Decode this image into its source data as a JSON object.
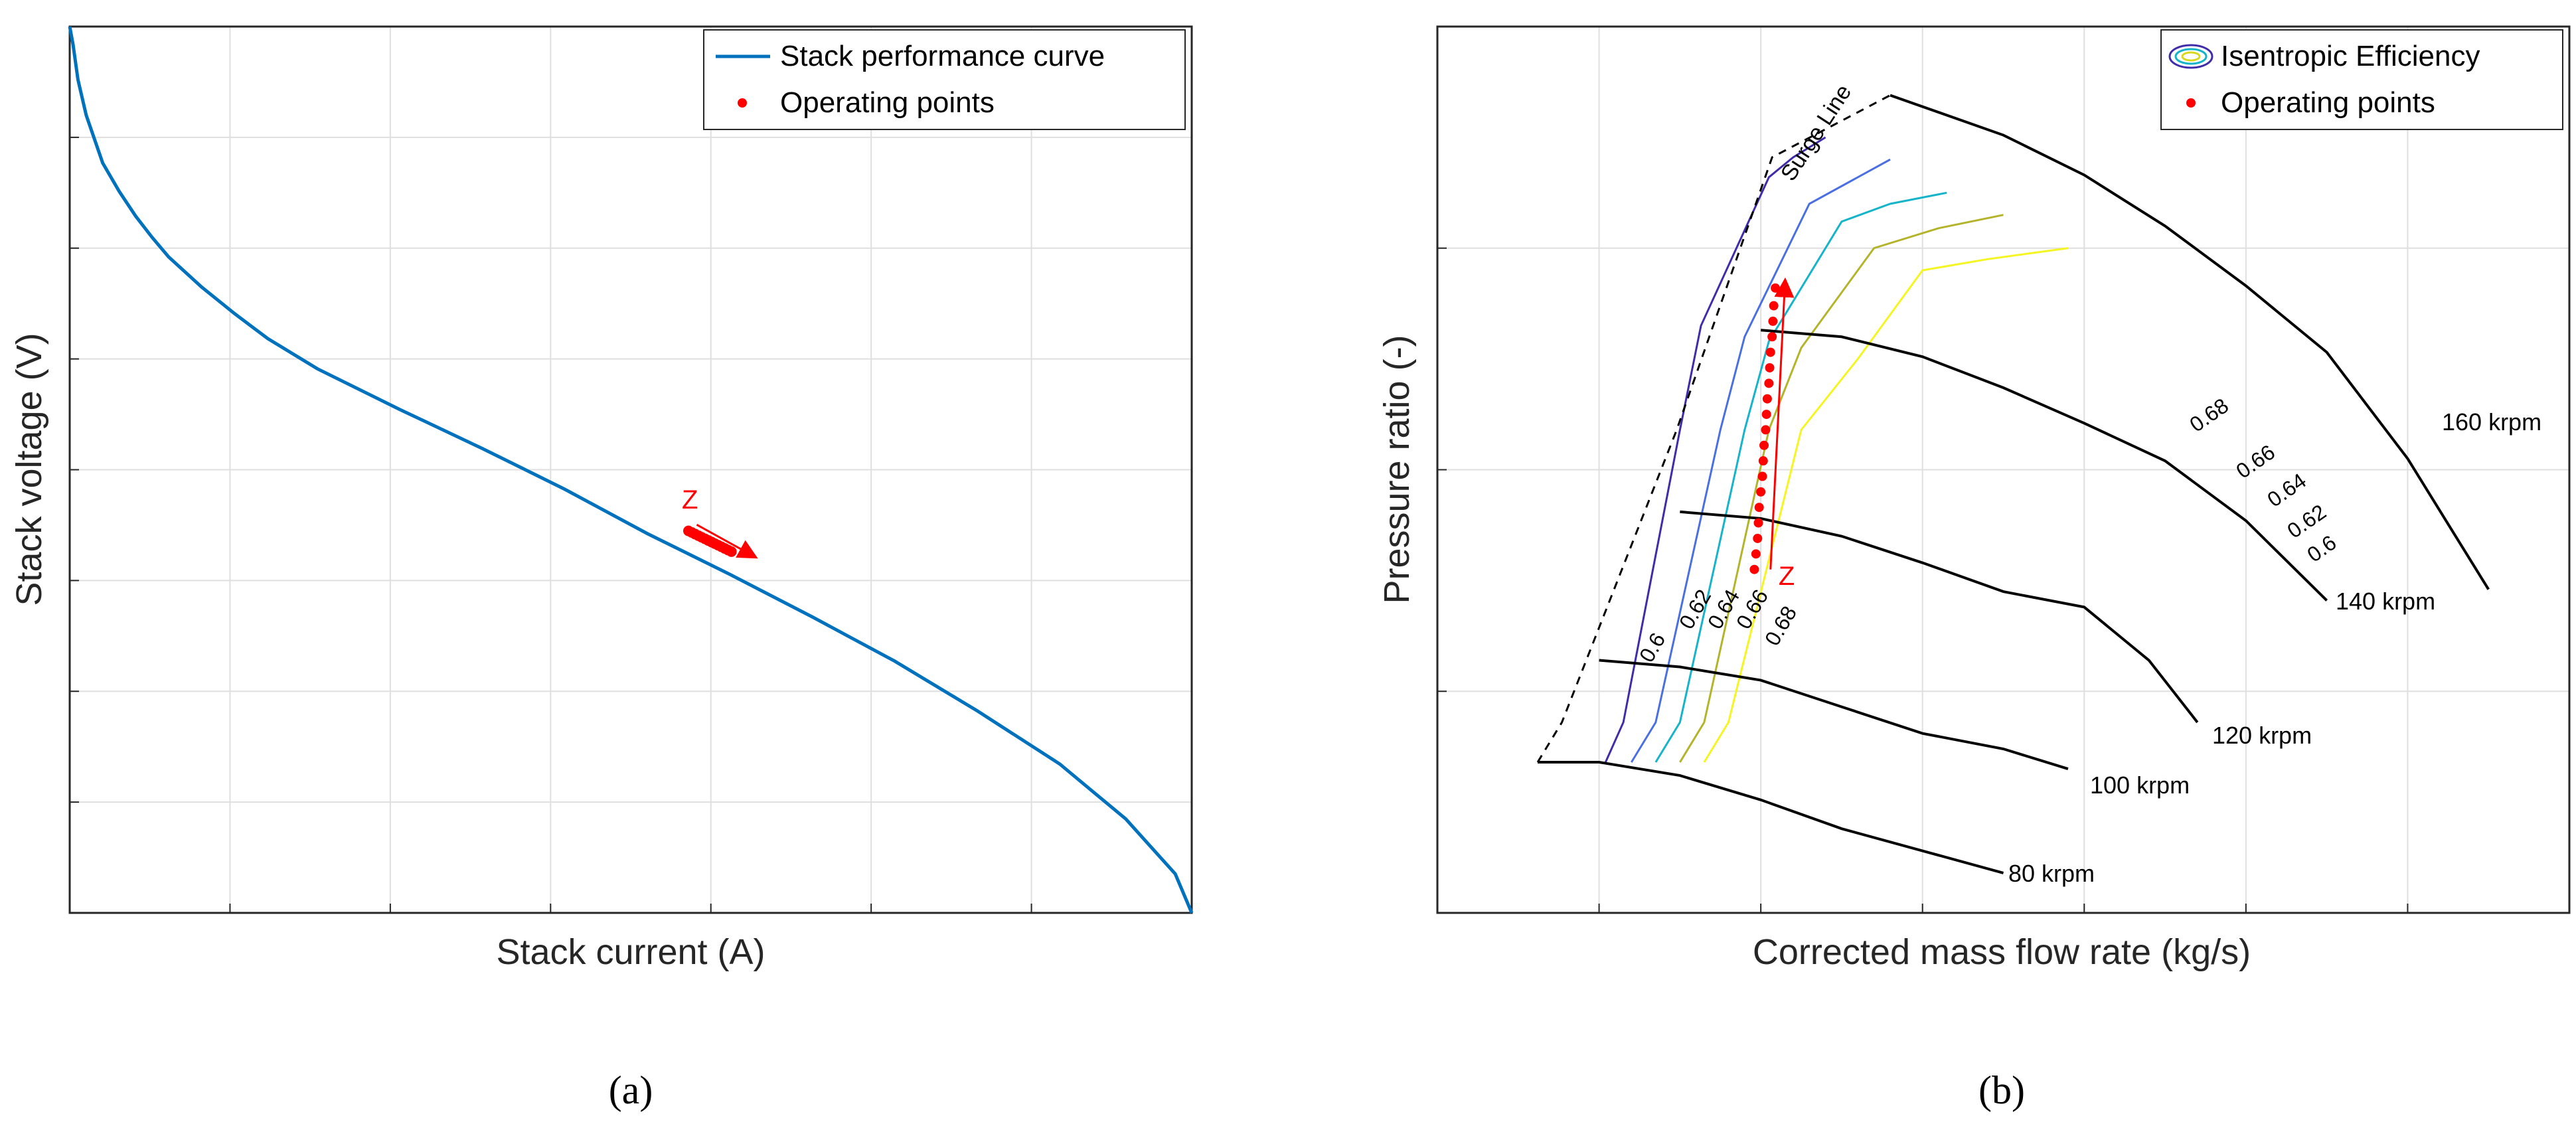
{
  "colors": {
    "curve": "#0072bd",
    "operating_point": "#ff0000",
    "grid": "#dfdfdf",
    "axes": "#262626",
    "speed_line": "#000000",
    "eff_060": "#3f2ca8",
    "eff_062": "#4a6fe3",
    "eff_064": "#16b4c8",
    "eff_066": "#b4b42a",
    "eff_068": "#f5f522"
  },
  "chart_data": [
    {
      "panel": "(a)",
      "type": "line",
      "xlabel": "Stack current (A)",
      "ylabel": "Stack voltage (V)",
      "xlim": [
        0,
        680
      ],
      "ylim": [
        0,
        500
      ],
      "grid": true,
      "tick_labels_visible": false,
      "legend": {
        "location": "top-right",
        "entries": [
          "Stack performance curve",
          "Operating points"
        ]
      },
      "series": [
        {
          "name": "Stack performance curve",
          "style": "line",
          "x": [
            0,
            2,
            5,
            10,
            20,
            30,
            40,
            50,
            60,
            80,
            100,
            120,
            150,
            200,
            250,
            300,
            350,
            400,
            450,
            500,
            550,
            600,
            640,
            670,
            680
          ],
          "y": [
            500,
            490,
            470,
            450,
            423,
            407,
            393,
            381,
            370,
            353,
            338,
            324,
            307,
            284,
            262,
            239,
            214,
            191,
            167,
            142,
            114,
            84,
            53,
            22,
            0
          ]
        },
        {
          "name": "Operating points",
          "style": "markers",
          "x": [
            375,
            377,
            379,
            381,
            383,
            385,
            387,
            389,
            391,
            393,
            395,
            397,
            399,
            401
          ],
          "y": [
            215.5,
            214.6,
            213.7,
            212.8,
            211.9,
            211.0,
            210.1,
            209.2,
            208.3,
            207.4,
            206.5,
            205.6,
            204.7,
            203.8
          ]
        }
      ],
      "annotations": [
        {
          "text": "Z",
          "x": 371,
          "y": 228
        },
        {
          "arrow": true,
          "from": [
            380,
            219
          ],
          "to": [
            415,
            201
          ]
        }
      ]
    },
    {
      "panel": "(b)",
      "type": "line",
      "xlabel": "Corrected mass flow rate (kg/s)",
      "ylabel": "Pressure ratio (-)",
      "xlim": [
        0,
        700
      ],
      "ylim": [
        0,
        400
      ],
      "grid": true,
      "tick_labels_visible": false,
      "legend": {
        "location": "top-right",
        "entries": [
          "Isentropic Efficiency",
          "Operating points"
        ]
      },
      "surge_line": {
        "label": "Surge Line",
        "x": [
          62,
          77,
          148,
          207,
          280
        ],
        "y": [
          68,
          86,
          218,
          341,
          369
        ]
      },
      "speed_lines": [
        {
          "label": "80 krpm",
          "x": [
            62,
            100,
            150,
            200,
            250,
            300,
            350
          ],
          "y": [
            68,
            68,
            62,
            51,
            38,
            28,
            18
          ]
        },
        {
          "label": "100 krpm",
          "x": [
            100,
            150,
            200,
            250,
            300,
            350,
            390
          ],
          "y": [
            114,
            111,
            105,
            93,
            81,
            74,
            65
          ]
        },
        {
          "label": "120 krpm",
          "x": [
            150,
            200,
            250,
            300,
            350,
            400,
            440,
            470
          ],
          "y": [
            181,
            178,
            170,
            158,
            145,
            138,
            114,
            86
          ]
        },
        {
          "label": "140 krpm",
          "x": [
            200,
            250,
            300,
            350,
            400,
            450,
            500,
            550
          ],
          "y": [
            263,
            260,
            251,
            237,
            221,
            204,
            177,
            141
          ]
        },
        {
          "label": "160 krpm",
          "x": [
            280,
            350,
            400,
            450,
            500,
            550,
            600,
            650
          ],
          "y": [
            369,
            351,
            333,
            310,
            283,
            253,
            205,
            146
          ]
        }
      ],
      "efficiency_contours": [
        {
          "level": 0.6,
          "x": [
            104,
            115,
            150,
            163,
            205,
            220,
            240
          ],
          "y": [
            68,
            86,
            218,
            265,
            332,
            341,
            350
          ]
        },
        {
          "level": 0.62,
          "x": [
            120,
            135,
            175,
            190,
            230,
            255,
            280
          ],
          "y": [
            68,
            86,
            218,
            260,
            320,
            330,
            340
          ]
        },
        {
          "level": 0.64,
          "x": [
            135,
            150,
            190,
            205,
            250,
            280,
            315
          ],
          "y": [
            68,
            86,
            218,
            258,
            312,
            320,
            325
          ]
        },
        {
          "level": 0.66,
          "x": [
            150,
            165,
            205,
            225,
            270,
            310,
            350
          ],
          "y": [
            68,
            86,
            218,
            255,
            300,
            309,
            315
          ]
        },
        {
          "level": 0.68,
          "x": [
            165,
            180,
            225,
            260,
            300,
            340,
            390
          ],
          "y": [
            68,
            86,
            218,
            250,
            290,
            295,
            300
          ]
        }
      ],
      "contour_labels": [
        "0.6",
        "0.62",
        "0.64",
        "0.66",
        "0.68",
        "0.68",
        "0.66",
        "0.64",
        "0.62",
        "0.6"
      ],
      "series": [
        {
          "name": "Operating points",
          "style": "markers",
          "x": [
            196,
            197,
            198,
            198.5,
            199,
            200,
            201,
            201.5,
            202,
            203,
            203.5,
            204,
            205,
            205.5,
            206,
            207,
            207.5,
            208,
            209
          ],
          "y": [
            155,
            162,
            169,
            176,
            183,
            190,
            197,
            204,
            211,
            218,
            225,
            232,
            239,
            246,
            253,
            260,
            267,
            274,
            282
          ]
        }
      ],
      "annotations": [
        {
          "text": "Z",
          "x": 211,
          "y": 148
        },
        {
          "arrow": true,
          "from": [
            206,
            155
          ],
          "to": [
            215,
            285
          ]
        }
      ]
    }
  ],
  "panel_labels": {
    "a": "(a)",
    "b": "(b)"
  },
  "speed_labels": [
    "80 krpm",
    "100 krpm",
    "120 krpm",
    "140 krpm",
    "160 krpm"
  ]
}
